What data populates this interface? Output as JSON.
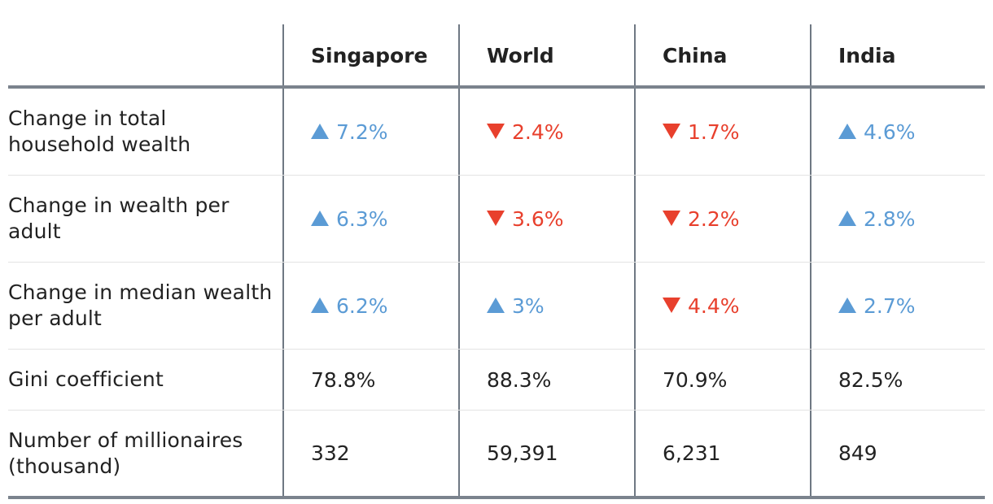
{
  "chart_data": {
    "type": "table",
    "columns": [
      "",
      "Singapore",
      "World",
      "China",
      "India"
    ],
    "rows": [
      {
        "label": "Change in total household wealth",
        "cells": [
          {
            "text": "7.2%",
            "direction": "up"
          },
          {
            "text": "2.4%",
            "direction": "down"
          },
          {
            "text": "1.7%",
            "direction": "down"
          },
          {
            "text": "4.6%",
            "direction": "up"
          }
        ]
      },
      {
        "label": "Change in wealth per adult",
        "cells": [
          {
            "text": "6.3%",
            "direction": "up"
          },
          {
            "text": "3.6%",
            "direction": "down"
          },
          {
            "text": "2.2%",
            "direction": "down"
          },
          {
            "text": "2.8%",
            "direction": "up"
          }
        ]
      },
      {
        "label": "Change in median wealth per adult",
        "cells": [
          {
            "text": "6.2%",
            "direction": "up"
          },
          {
            "text": "3%",
            "direction": "up"
          },
          {
            "text": "4.4%",
            "direction": "down"
          },
          {
            "text": "2.7%",
            "direction": "up"
          }
        ]
      },
      {
        "label": "Gini coefficient",
        "cells": [
          {
            "text": "78.8%",
            "direction": "none"
          },
          {
            "text": "88.3%",
            "direction": "none"
          },
          {
            "text": "70.9%",
            "direction": "none"
          },
          {
            "text": "82.5%",
            "direction": "none"
          }
        ]
      },
      {
        "label": "Number of millionaires (thousand)",
        "cells": [
          {
            "text": "332",
            "direction": "none"
          },
          {
            "text": "59,391",
            "direction": "none"
          },
          {
            "text": "6,231",
            "direction": "none"
          },
          {
            "text": "849",
            "direction": "none"
          }
        ]
      }
    ],
    "colors": {
      "up": "#5b9bd5",
      "down": "#e8402d",
      "rule": "#7b838d",
      "divider": "#6f7883"
    }
  }
}
